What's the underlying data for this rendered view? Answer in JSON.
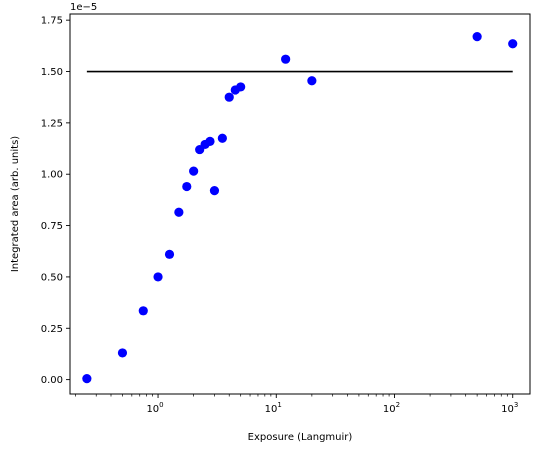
{
  "chart_data": {
    "type": "scatter",
    "xlabel": "Exposure (Langmuir)",
    "ylabel": "Integrated area (arb. units)",
    "y_offset_label": "1e−5",
    "x_scale": "log",
    "x_range": [
      0.18,
      1400
    ],
    "y_range": [
      -0.07,
      1.78
    ],
    "x_ticks": [
      {
        "value": 1,
        "label": "10",
        "exp": "0"
      },
      {
        "value": 10,
        "label": "10",
        "exp": "1"
      },
      {
        "value": 100,
        "label": "10",
        "exp": "2"
      },
      {
        "value": 1000,
        "label": "10",
        "exp": "3"
      }
    ],
    "y_ticks": [
      {
        "value": 0.0,
        "label": "0.00"
      },
      {
        "value": 0.25,
        "label": "0.25"
      },
      {
        "value": 0.5,
        "label": "0.50"
      },
      {
        "value": 0.75,
        "label": "0.75"
      },
      {
        "value": 1.0,
        "label": "1.00"
      },
      {
        "value": 1.25,
        "label": "1.25"
      },
      {
        "value": 1.5,
        "label": "1.50"
      },
      {
        "value": 1.75,
        "label": "1.75"
      }
    ],
    "grid": false,
    "reference_line": {
      "x": [
        0.25,
        1000
      ],
      "y": 1.5,
      "color": "#000000"
    },
    "points": [
      {
        "x": 0.25,
        "y": 0.005
      },
      {
        "x": 0.5,
        "y": 0.13
      },
      {
        "x": 0.75,
        "y": 0.335
      },
      {
        "x": 1.0,
        "y": 0.5
      },
      {
        "x": 1.25,
        "y": 0.61
      },
      {
        "x": 1.5,
        "y": 0.815
      },
      {
        "x": 1.75,
        "y": 0.94
      },
      {
        "x": 2.0,
        "y": 1.015
      },
      {
        "x": 2.25,
        "y": 1.12
      },
      {
        "x": 2.5,
        "y": 1.145
      },
      {
        "x": 2.75,
        "y": 1.16
      },
      {
        "x": 3.0,
        "y": 0.92
      },
      {
        "x": 3.5,
        "y": 1.175
      },
      {
        "x": 4.0,
        "y": 1.375
      },
      {
        "x": 4.5,
        "y": 1.41
      },
      {
        "x": 5.0,
        "y": 1.425
      },
      {
        "x": 12,
        "y": 1.56
      },
      {
        "x": 20,
        "y": 1.455
      },
      {
        "x": 500,
        "y": 1.67
      },
      {
        "x": 1000,
        "y": 1.635
      }
    ],
    "point_color": "#0000ff"
  }
}
